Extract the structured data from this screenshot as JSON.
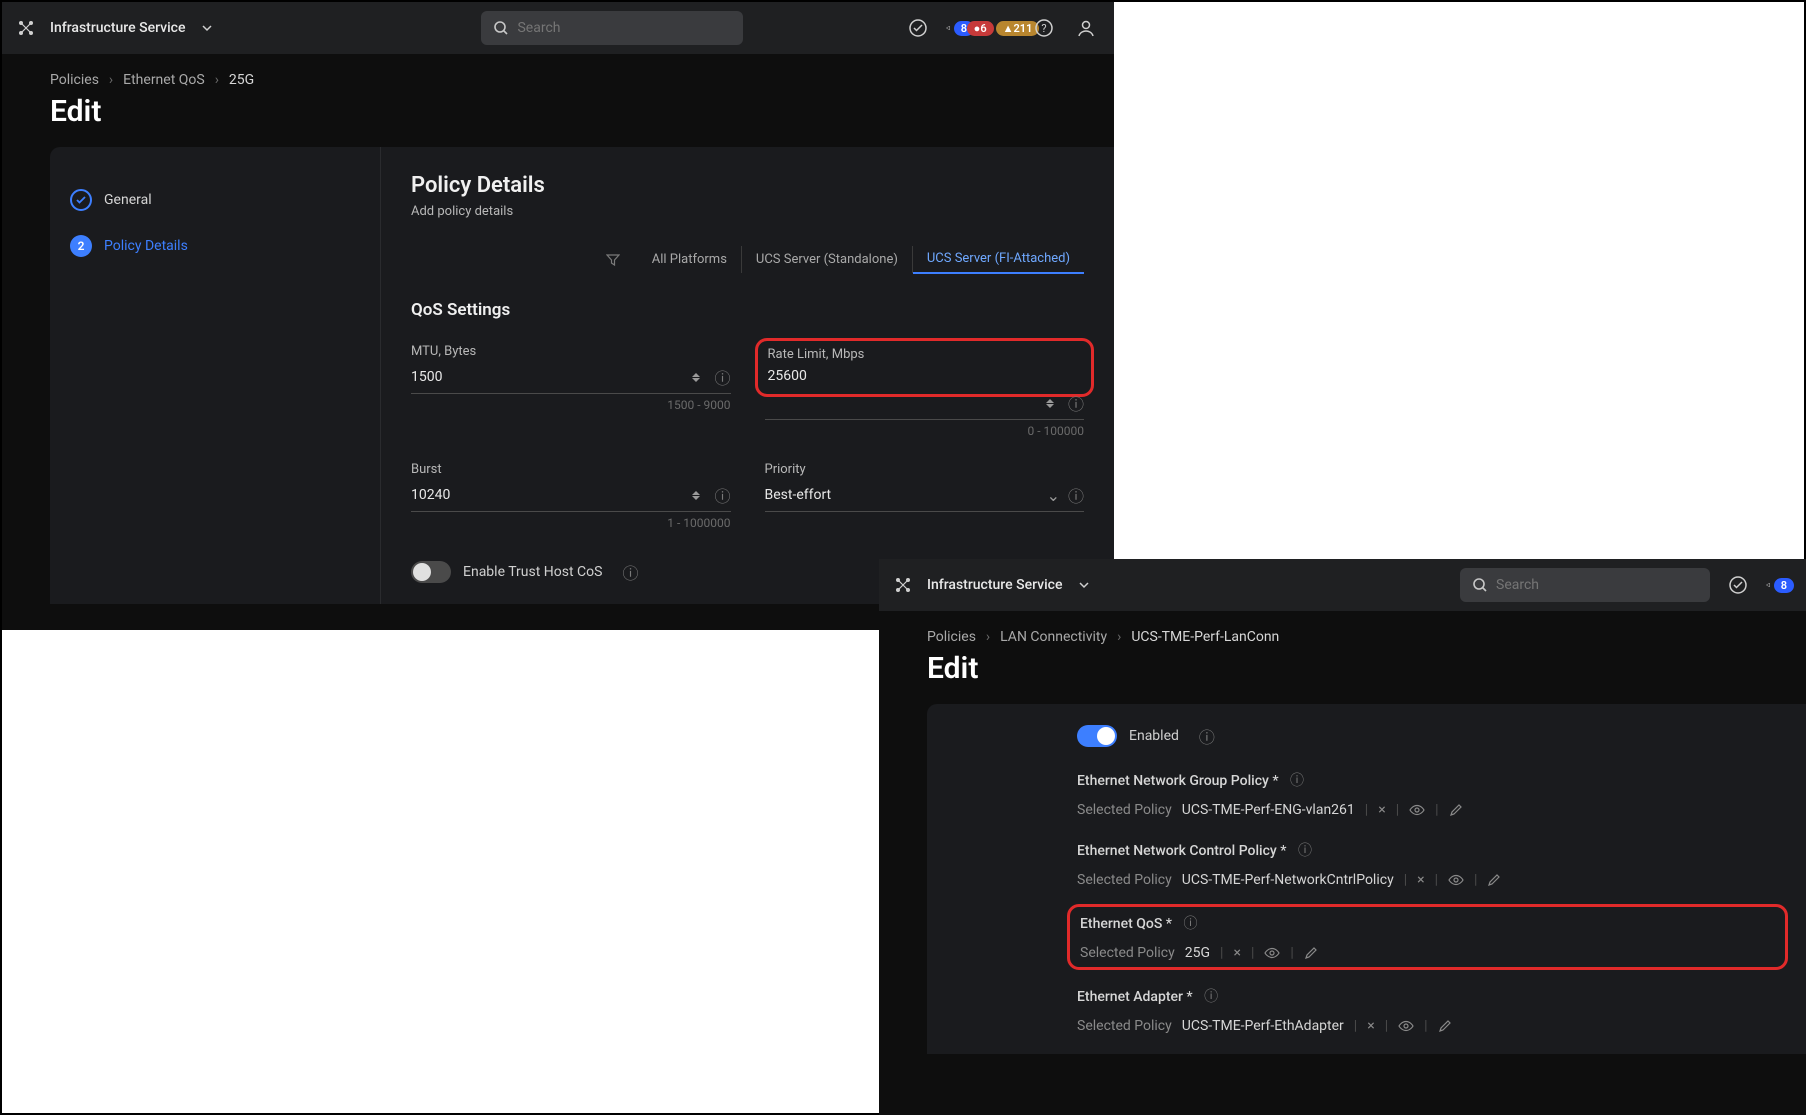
{
  "colors": {
    "bg_panel": "#0e0e0e",
    "bg_topbar": "#1f2022",
    "bg_card": "#1a1b1e",
    "accent": "#3d7fff",
    "highlight_border": "#e12a2a"
  },
  "panel1": {
    "brand": "Infrastructure Service",
    "search_placeholder": "Search",
    "badges": {
      "announce": "8",
      "alert_red": "6",
      "alert_yellow": "211"
    },
    "breadcrumbs": [
      "Policies",
      "Ethernet QoS",
      "25G"
    ],
    "page_title": "Edit",
    "steps": [
      {
        "label": "General",
        "state": "done"
      },
      {
        "num": "2",
        "label": "Policy Details",
        "state": "active"
      }
    ],
    "section_title": "Policy Details",
    "section_sub": "Add policy details",
    "tabs": [
      "All Platforms",
      "UCS Server (Standalone)",
      "UCS Server (FI-Attached)"
    ],
    "active_tab": 2,
    "qos_heading": "QoS Settings",
    "fields": {
      "mtu": {
        "label": "MTU, Bytes",
        "value": "1500",
        "hint": "1500 - 9000"
      },
      "rate_limit": {
        "label": "Rate Limit, Mbps",
        "value": "25600",
        "hint": "0 - 100000"
      },
      "burst": {
        "label": "Burst",
        "value": "10240",
        "hint": "1 - 1000000"
      },
      "priority": {
        "label": "Priority",
        "value": "Best-effort"
      }
    },
    "trust_cos_label": "Enable Trust Host CoS"
  },
  "panel2": {
    "brand": "Infrastructure Service",
    "search_placeholder": "Search",
    "badges": {
      "announce": "8"
    },
    "breadcrumbs": [
      "Policies",
      "LAN Connectivity",
      "UCS-TME-Perf-LanConn"
    ],
    "page_title": "Edit",
    "enabled_label": "Enabled",
    "groups": [
      {
        "title": "Ethernet Network Group Policy *",
        "selected_label": "Selected Policy",
        "value": "UCS-TME-Perf-ENG-vlan261"
      },
      {
        "title": "Ethernet Network Control Policy *",
        "selected_label": "Selected Policy",
        "value": "UCS-TME-Perf-NetworkCntrlPolicy"
      },
      {
        "title": "Ethernet QoS *",
        "selected_label": "Selected Policy",
        "value": "25G",
        "highlight": true
      },
      {
        "title": "Ethernet Adapter *",
        "selected_label": "Selected Policy",
        "value": "UCS-TME-Perf-EthAdapter"
      }
    ]
  }
}
